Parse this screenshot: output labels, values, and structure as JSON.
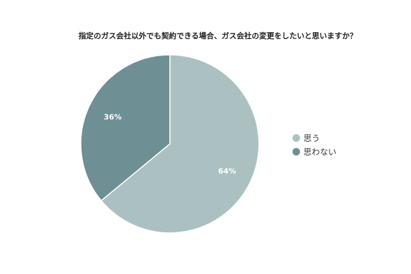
{
  "chart_data": {
    "type": "pie",
    "title": "指定のガス会社以外でも契約できる場合、ガス会社の変更をしたいと思いますか？",
    "categories": [
      "思う",
      "思わない"
    ],
    "values": [
      64,
      36
    ],
    "labels": [
      "64%",
      "36%"
    ],
    "colors": [
      "#abc1c1",
      "#6e8f94"
    ],
    "legend": "right"
  }
}
